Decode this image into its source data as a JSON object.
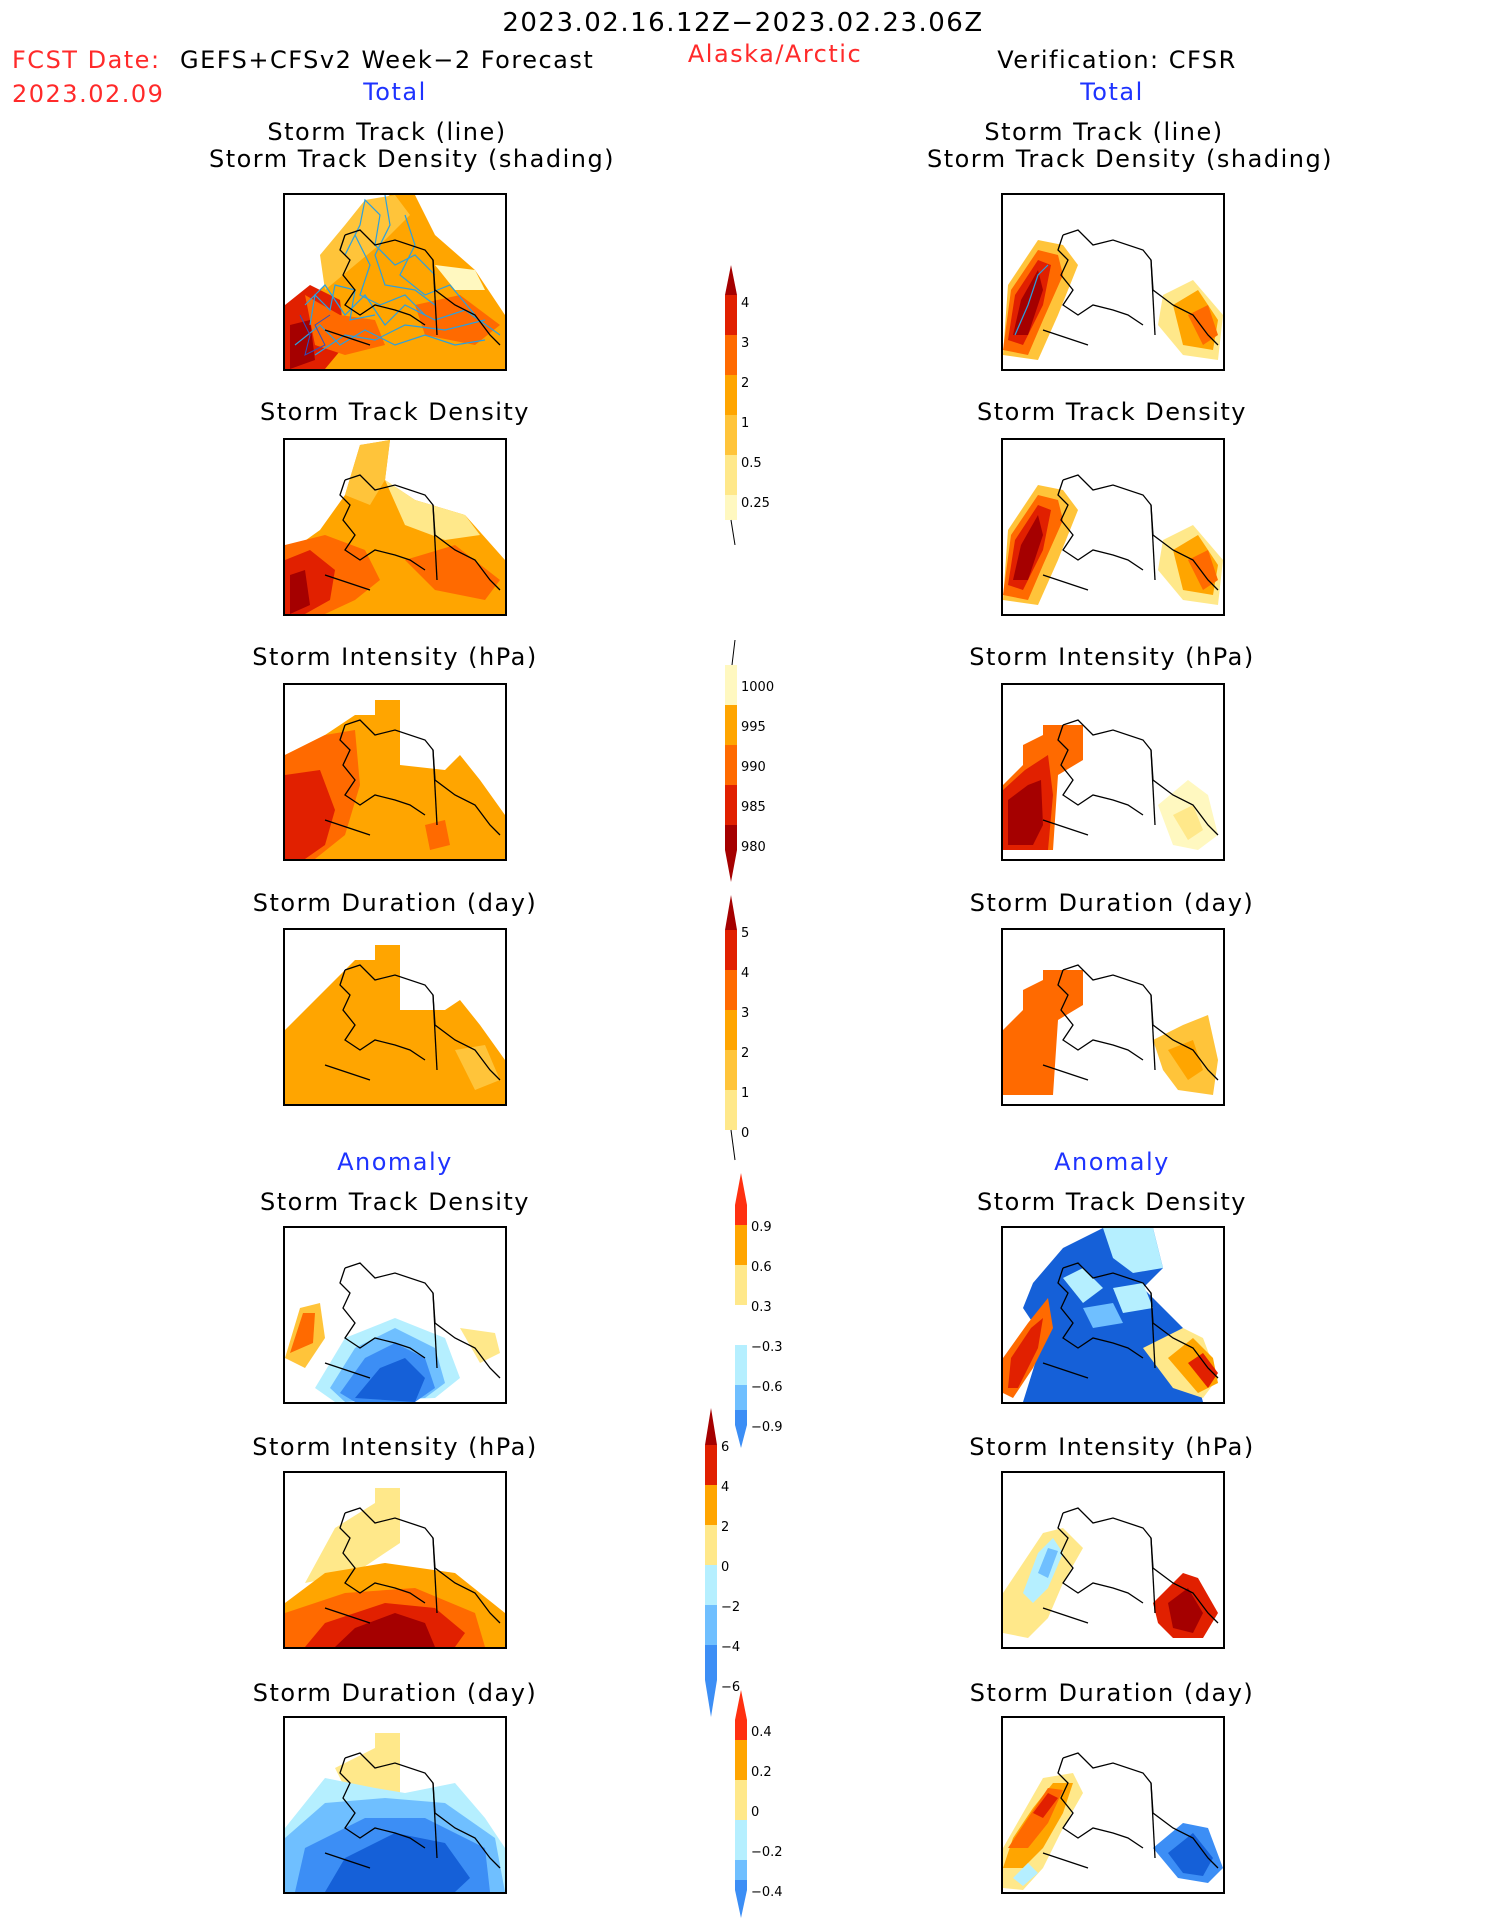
{
  "header": {
    "period": "2023.02.16.12Z−2023.02.23.06Z",
    "fcst_label": "FCST Date:",
    "fcst_model": "GEFS+CFSv2 Week−2 Forecast",
    "fcst_date": "2023.02.09",
    "region": "Alaska/Arctic",
    "verification": "Verification: CFSR"
  },
  "left": {
    "section_total": "Total",
    "section_anomaly": "Anomaly",
    "titles": [
      "Storm Track (line)",
      "Storm Track Density (shading)",
      "Storm Track Density",
      "Storm Intensity (hPa)",
      "Storm Duration (day)",
      "Storm Track Density",
      "Storm Intensity (hPa)",
      "Storm Duration (day)"
    ]
  },
  "right": {
    "section_total": "Total",
    "section_anomaly": "Anomaly",
    "titles": [
      "Storm Track (line)",
      "Storm Track Density (shading)",
      "Storm Track Density",
      "Storm Intensity (hPa)",
      "Storm Duration (day)",
      "Storm Track Density",
      "Storm Intensity (hPa)",
      "Storm Duration (day)"
    ]
  },
  "colorbars": [
    {
      "name": "track-density-total",
      "labels": [
        "4",
        "3",
        "2",
        "1",
        "0.5",
        "0.25"
      ]
    },
    {
      "name": "intensity-total",
      "labels": [
        "1000",
        "995",
        "990",
        "985",
        "980"
      ]
    },
    {
      "name": "duration-total",
      "labels": [
        "5",
        "4",
        "3",
        "2",
        "1",
        "0"
      ]
    },
    {
      "name": "track-density-anomaly",
      "labels": [
        "0.9",
        "0.6",
        "0.3",
        "−0.3",
        "−0.6",
        "−0.9"
      ]
    },
    {
      "name": "intensity-anomaly",
      "labels": [
        "6",
        "4",
        "2",
        "0",
        "−2",
        "−4",
        "−6"
      ]
    },
    {
      "name": "duration-anomaly",
      "labels": [
        "0.4",
        "0.2",
        "0",
        "−0.2",
        "−0.4"
      ]
    }
  ],
  "colors": {
    "dark_red": "#a50000",
    "red": "#e12000",
    "orange_red": "#ff6a00",
    "orange": "#ffa500",
    "light_orange": "#ffc43a",
    "yellow": "#ffe88a",
    "pale_yellow": "#fff8c0",
    "light_blue": "#b5efff",
    "mid_blue": "#6fbfff",
    "blue": "#3c8ef5",
    "dark_blue": "#1560d8",
    "track_line": "#2aa0e0",
    "title_blue": "#1e33ff",
    "header_red": "#ff2a2a"
  }
}
